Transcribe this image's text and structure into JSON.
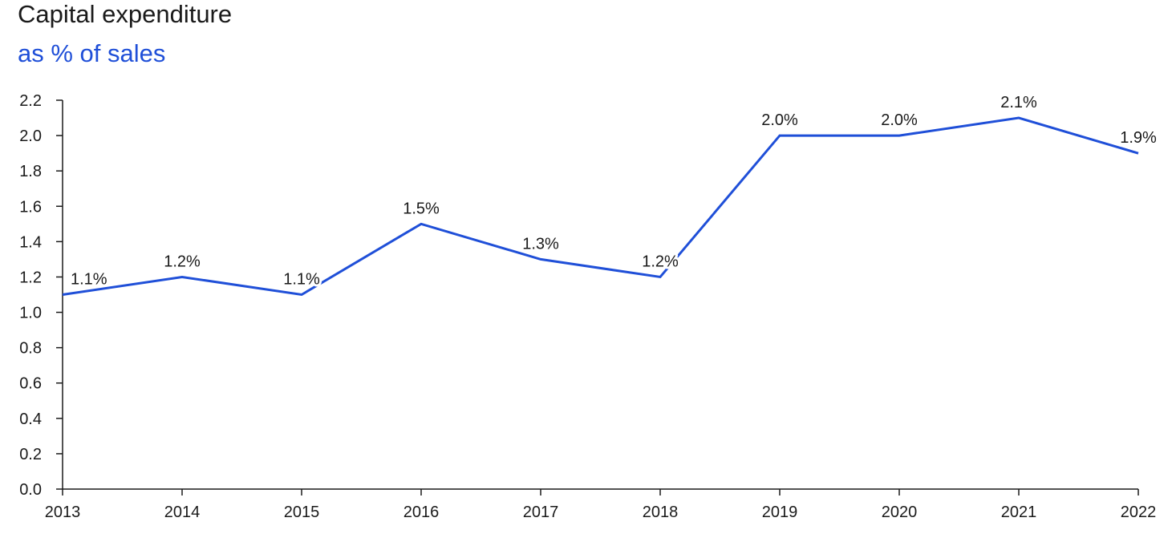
{
  "title": "Capital expenditure",
  "subtitle": "as % of sales",
  "colors": {
    "line": "#1f4fd8",
    "axis": "#1a1a1a",
    "subtitle": "#1f4fd8"
  },
  "chart_data": {
    "type": "line",
    "title": "Capital expenditure",
    "subtitle": "as % of sales",
    "xlabel": "",
    "ylabel": "",
    "x": [
      "2013",
      "2014",
      "2015",
      "2016",
      "2017",
      "2018",
      "2019",
      "2020",
      "2021",
      "2022"
    ],
    "series": [
      {
        "values": [
          1.1,
          1.2,
          1.1,
          1.5,
          1.3,
          1.2,
          2.0,
          2.0,
          2.1,
          1.9
        ],
        "data_labels": [
          "1.1%",
          "1.2%",
          "1.1%",
          "1.5%",
          "1.3%",
          "1.2%",
          "2.0%",
          "2.0%",
          "2.1%",
          "1.9%"
        ]
      }
    ],
    "ylim": [
      0,
      2.2
    ],
    "yticks": [
      "0.0",
      "0.2",
      "0.4",
      "0.6",
      "0.8",
      "1.0",
      "1.2",
      "1.4",
      "1.6",
      "1.8",
      "2.0",
      "2.2"
    ],
    "grid": false,
    "legend": "none"
  }
}
